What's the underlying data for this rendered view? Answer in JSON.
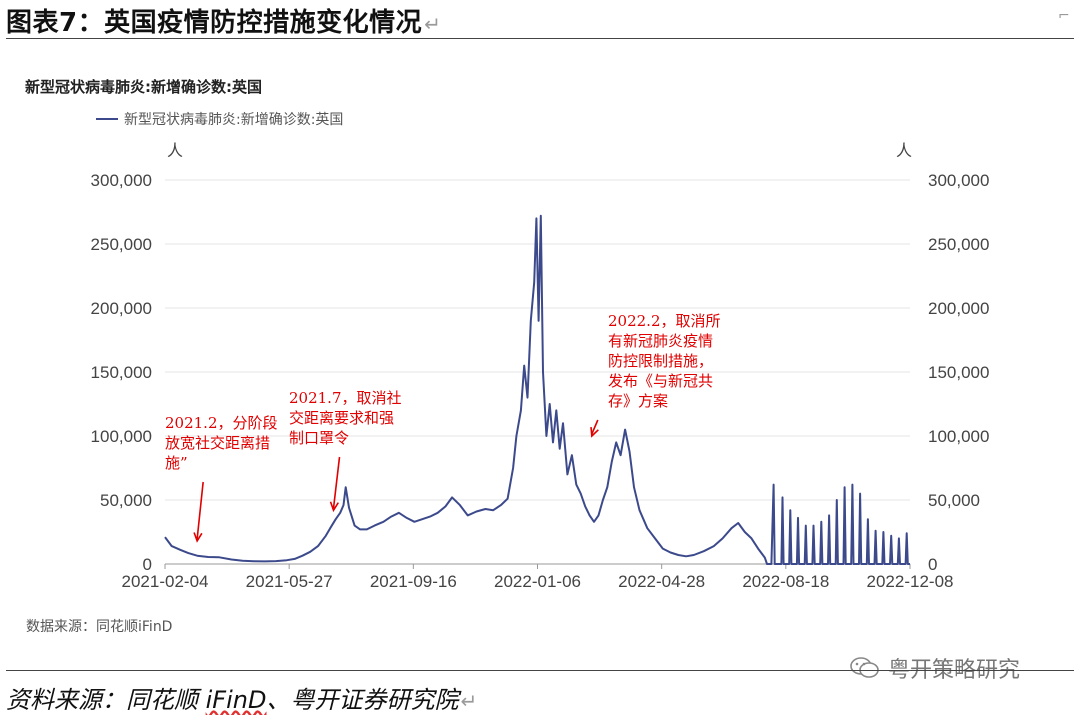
{
  "figure": {
    "title": "图表7：英国疫情防控措施变化情况",
    "return_mark": "↵",
    "source_line_prefix": "资料来源：同花顺 ",
    "source_line_ifind": "iFinD",
    "source_line_suffix": "、粤开证券研究院",
    "watermark": "粤开策略研究"
  },
  "chart_data": {
    "type": "line",
    "title": "新型冠状病毒肺炎:新增确诊数:英国",
    "series": [
      {
        "name": "新型冠状病毒肺炎:新增确诊数:英国",
        "color": "#3c4a8c",
        "points": [
          [
            "2021-02-04",
            21000
          ],
          [
            "2021-02-10",
            14000
          ],
          [
            "2021-02-18",
            11000
          ],
          [
            "2021-02-25",
            8500
          ],
          [
            "2021-03-05",
            6500
          ],
          [
            "2021-03-15",
            5500
          ],
          [
            "2021-03-25",
            5200
          ],
          [
            "2021-04-05",
            3500
          ],
          [
            "2021-04-15",
            2500
          ],
          [
            "2021-04-25",
            2200
          ],
          [
            "2021-05-05",
            2000
          ],
          [
            "2021-05-15",
            2300
          ],
          [
            "2021-05-25",
            3000
          ],
          [
            "2021-06-01",
            4000
          ],
          [
            "2021-06-08",
            6500
          ],
          [
            "2021-06-15",
            9500
          ],
          [
            "2021-06-22",
            14000
          ],
          [
            "2021-06-29",
            22000
          ],
          [
            "2021-07-03",
            28000
          ],
          [
            "2021-07-08",
            35000
          ],
          [
            "2021-07-12",
            40000
          ],
          [
            "2021-07-15",
            46000
          ],
          [
            "2021-07-17",
            60000
          ],
          [
            "2021-07-20",
            44000
          ],
          [
            "2021-07-25",
            30000
          ],
          [
            "2021-07-30",
            27000
          ],
          [
            "2021-08-05",
            27000
          ],
          [
            "2021-08-12",
            30000
          ],
          [
            "2021-08-20",
            33000
          ],
          [
            "2021-08-27",
            37000
          ],
          [
            "2021-09-03",
            40000
          ],
          [
            "2021-09-10",
            36000
          ],
          [
            "2021-09-17",
            33000
          ],
          [
            "2021-09-24",
            35000
          ],
          [
            "2021-10-01",
            37000
          ],
          [
            "2021-10-08",
            40000
          ],
          [
            "2021-10-15",
            45000
          ],
          [
            "2021-10-21",
            52000
          ],
          [
            "2021-10-28",
            46000
          ],
          [
            "2021-11-04",
            38000
          ],
          [
            "2021-11-12",
            41000
          ],
          [
            "2021-11-20",
            43000
          ],
          [
            "2021-11-27",
            42000
          ],
          [
            "2021-12-04",
            46000
          ],
          [
            "2021-12-10",
            51000
          ],
          [
            "2021-12-15",
            75000
          ],
          [
            "2021-12-18",
            100000
          ],
          [
            "2021-12-22",
            120000
          ],
          [
            "2021-12-25",
            155000
          ],
          [
            "2021-12-28",
            130000
          ],
          [
            "2021-12-31",
            190000
          ],
          [
            "2022-01-03",
            220000
          ],
          [
            "2022-01-05",
            270000
          ],
          [
            "2022-01-07",
            190000
          ],
          [
            "2022-01-09",
            272000
          ],
          [
            "2022-01-11",
            150000
          ],
          [
            "2022-01-14",
            100000
          ],
          [
            "2022-01-17",
            125000
          ],
          [
            "2022-01-20",
            95000
          ],
          [
            "2022-01-23",
            120000
          ],
          [
            "2022-01-26",
            90000
          ],
          [
            "2022-01-29",
            110000
          ],
          [
            "2022-02-02",
            70000
          ],
          [
            "2022-02-06",
            85000
          ],
          [
            "2022-02-10",
            62000
          ],
          [
            "2022-02-14",
            55000
          ],
          [
            "2022-02-18",
            45000
          ],
          [
            "2022-02-22",
            38000
          ],
          [
            "2022-02-26",
            33000
          ],
          [
            "2022-03-02",
            38000
          ],
          [
            "2022-03-06",
            50000
          ],
          [
            "2022-03-10",
            60000
          ],
          [
            "2022-03-14",
            80000
          ],
          [
            "2022-03-18",
            95000
          ],
          [
            "2022-03-22",
            85000
          ],
          [
            "2022-03-26",
            105000
          ],
          [
            "2022-03-30",
            88000
          ],
          [
            "2022-04-03",
            60000
          ],
          [
            "2022-04-08",
            42000
          ],
          [
            "2022-04-15",
            28000
          ],
          [
            "2022-04-22",
            20000
          ],
          [
            "2022-04-29",
            12000
          ],
          [
            "2022-05-06",
            9000
          ],
          [
            "2022-05-13",
            7000
          ],
          [
            "2022-05-20",
            6000
          ],
          [
            "2022-05-27",
            7000
          ],
          [
            "2022-06-05",
            10000
          ],
          [
            "2022-06-14",
            14000
          ],
          [
            "2022-06-22",
            20000
          ],
          [
            "2022-06-30",
            28000
          ],
          [
            "2022-07-06",
            32000
          ],
          [
            "2022-07-12",
            25000
          ],
          [
            "2022-07-18",
            20000
          ],
          [
            "2022-07-24",
            12000
          ],
          [
            "2022-07-30",
            5000
          ],
          [
            "2022-08-01",
            0
          ],
          [
            "2022-08-05",
            0
          ],
          [
            "2022-08-07",
            62000
          ],
          [
            "2022-08-08",
            0
          ],
          [
            "2022-08-14",
            0
          ],
          [
            "2022-08-15",
            52000
          ],
          [
            "2022-08-16",
            0
          ],
          [
            "2022-08-21",
            0
          ],
          [
            "2022-08-22",
            42000
          ],
          [
            "2022-08-23",
            0
          ],
          [
            "2022-08-28",
            0
          ],
          [
            "2022-08-29",
            36000
          ],
          [
            "2022-08-30",
            0
          ],
          [
            "2022-09-04",
            0
          ],
          [
            "2022-09-05",
            30000
          ],
          [
            "2022-09-06",
            0
          ],
          [
            "2022-09-11",
            0
          ],
          [
            "2022-09-12",
            30000
          ],
          [
            "2022-09-13",
            0
          ],
          [
            "2022-09-18",
            0
          ],
          [
            "2022-09-19",
            33000
          ],
          [
            "2022-09-20",
            0
          ],
          [
            "2022-09-25",
            0
          ],
          [
            "2022-09-26",
            38000
          ],
          [
            "2022-09-27",
            0
          ],
          [
            "2022-10-02",
            0
          ],
          [
            "2022-10-03",
            50000
          ],
          [
            "2022-10-04",
            0
          ],
          [
            "2022-10-09",
            0
          ],
          [
            "2022-10-10",
            60000
          ],
          [
            "2022-10-11",
            0
          ],
          [
            "2022-10-16",
            0
          ],
          [
            "2022-10-17",
            62000
          ],
          [
            "2022-10-18",
            0
          ],
          [
            "2022-10-23",
            0
          ],
          [
            "2022-10-24",
            55000
          ],
          [
            "2022-10-25",
            0
          ],
          [
            "2022-10-30",
            0
          ],
          [
            "2022-10-31",
            35000
          ],
          [
            "2022-11-01",
            0
          ],
          [
            "2022-11-06",
            0
          ],
          [
            "2022-11-07",
            26000
          ],
          [
            "2022-11-08",
            0
          ],
          [
            "2022-11-13",
            0
          ],
          [
            "2022-11-14",
            25000
          ],
          [
            "2022-11-15",
            0
          ],
          [
            "2022-11-20",
            0
          ],
          [
            "2022-11-21",
            22000
          ],
          [
            "2022-11-22",
            0
          ],
          [
            "2022-11-27",
            0
          ],
          [
            "2022-11-28",
            20000
          ],
          [
            "2022-11-29",
            0
          ],
          [
            "2022-12-04",
            0
          ],
          [
            "2022-12-05",
            24000
          ],
          [
            "2022-12-06",
            0
          ],
          [
            "2022-12-08",
            0
          ]
        ]
      }
    ],
    "x_ticks": [
      "2021-02-04",
      "2021-05-27",
      "2021-09-16",
      "2022-01-06",
      "2022-04-28",
      "2022-08-18",
      "2022-12-08"
    ],
    "xlim": [
      "2021-02-04",
      "2022-12-08"
    ],
    "ylim": [
      0,
      300000
    ],
    "y_ticks": [
      0,
      50000,
      100000,
      150000,
      200000,
      250000,
      300000
    ],
    "y_tick_labels": [
      "0",
      "50,000",
      "100,000",
      "150,000",
      "200,000",
      "250,000",
      "300,000"
    ],
    "left_unit": "人",
    "right_unit": "人",
    "grid": "horizontal",
    "legend": "top-left",
    "source": "数据来源：同花顺iFinD",
    "annotations": [
      {
        "lines": [
          "2021.2，分阶段",
          "放宽社交距离措",
          "施”"
        ],
        "arrow_date": "2021-03-05",
        "arrow_value": 18000
      },
      {
        "lines": [
          "2021.7，取消社",
          "交距离要求和强",
          "制口罩令"
        ],
        "arrow_date": "2021-07-06",
        "arrow_value": 42000
      },
      {
        "lines": [
          "2022.2，取消所",
          "有新冠肺炎疫情",
          "防控限制措施，",
          "发布《与新冠共",
          "存》方案"
        ],
        "arrow_date": "2022-02-24",
        "arrow_value": 100000
      }
    ]
  }
}
